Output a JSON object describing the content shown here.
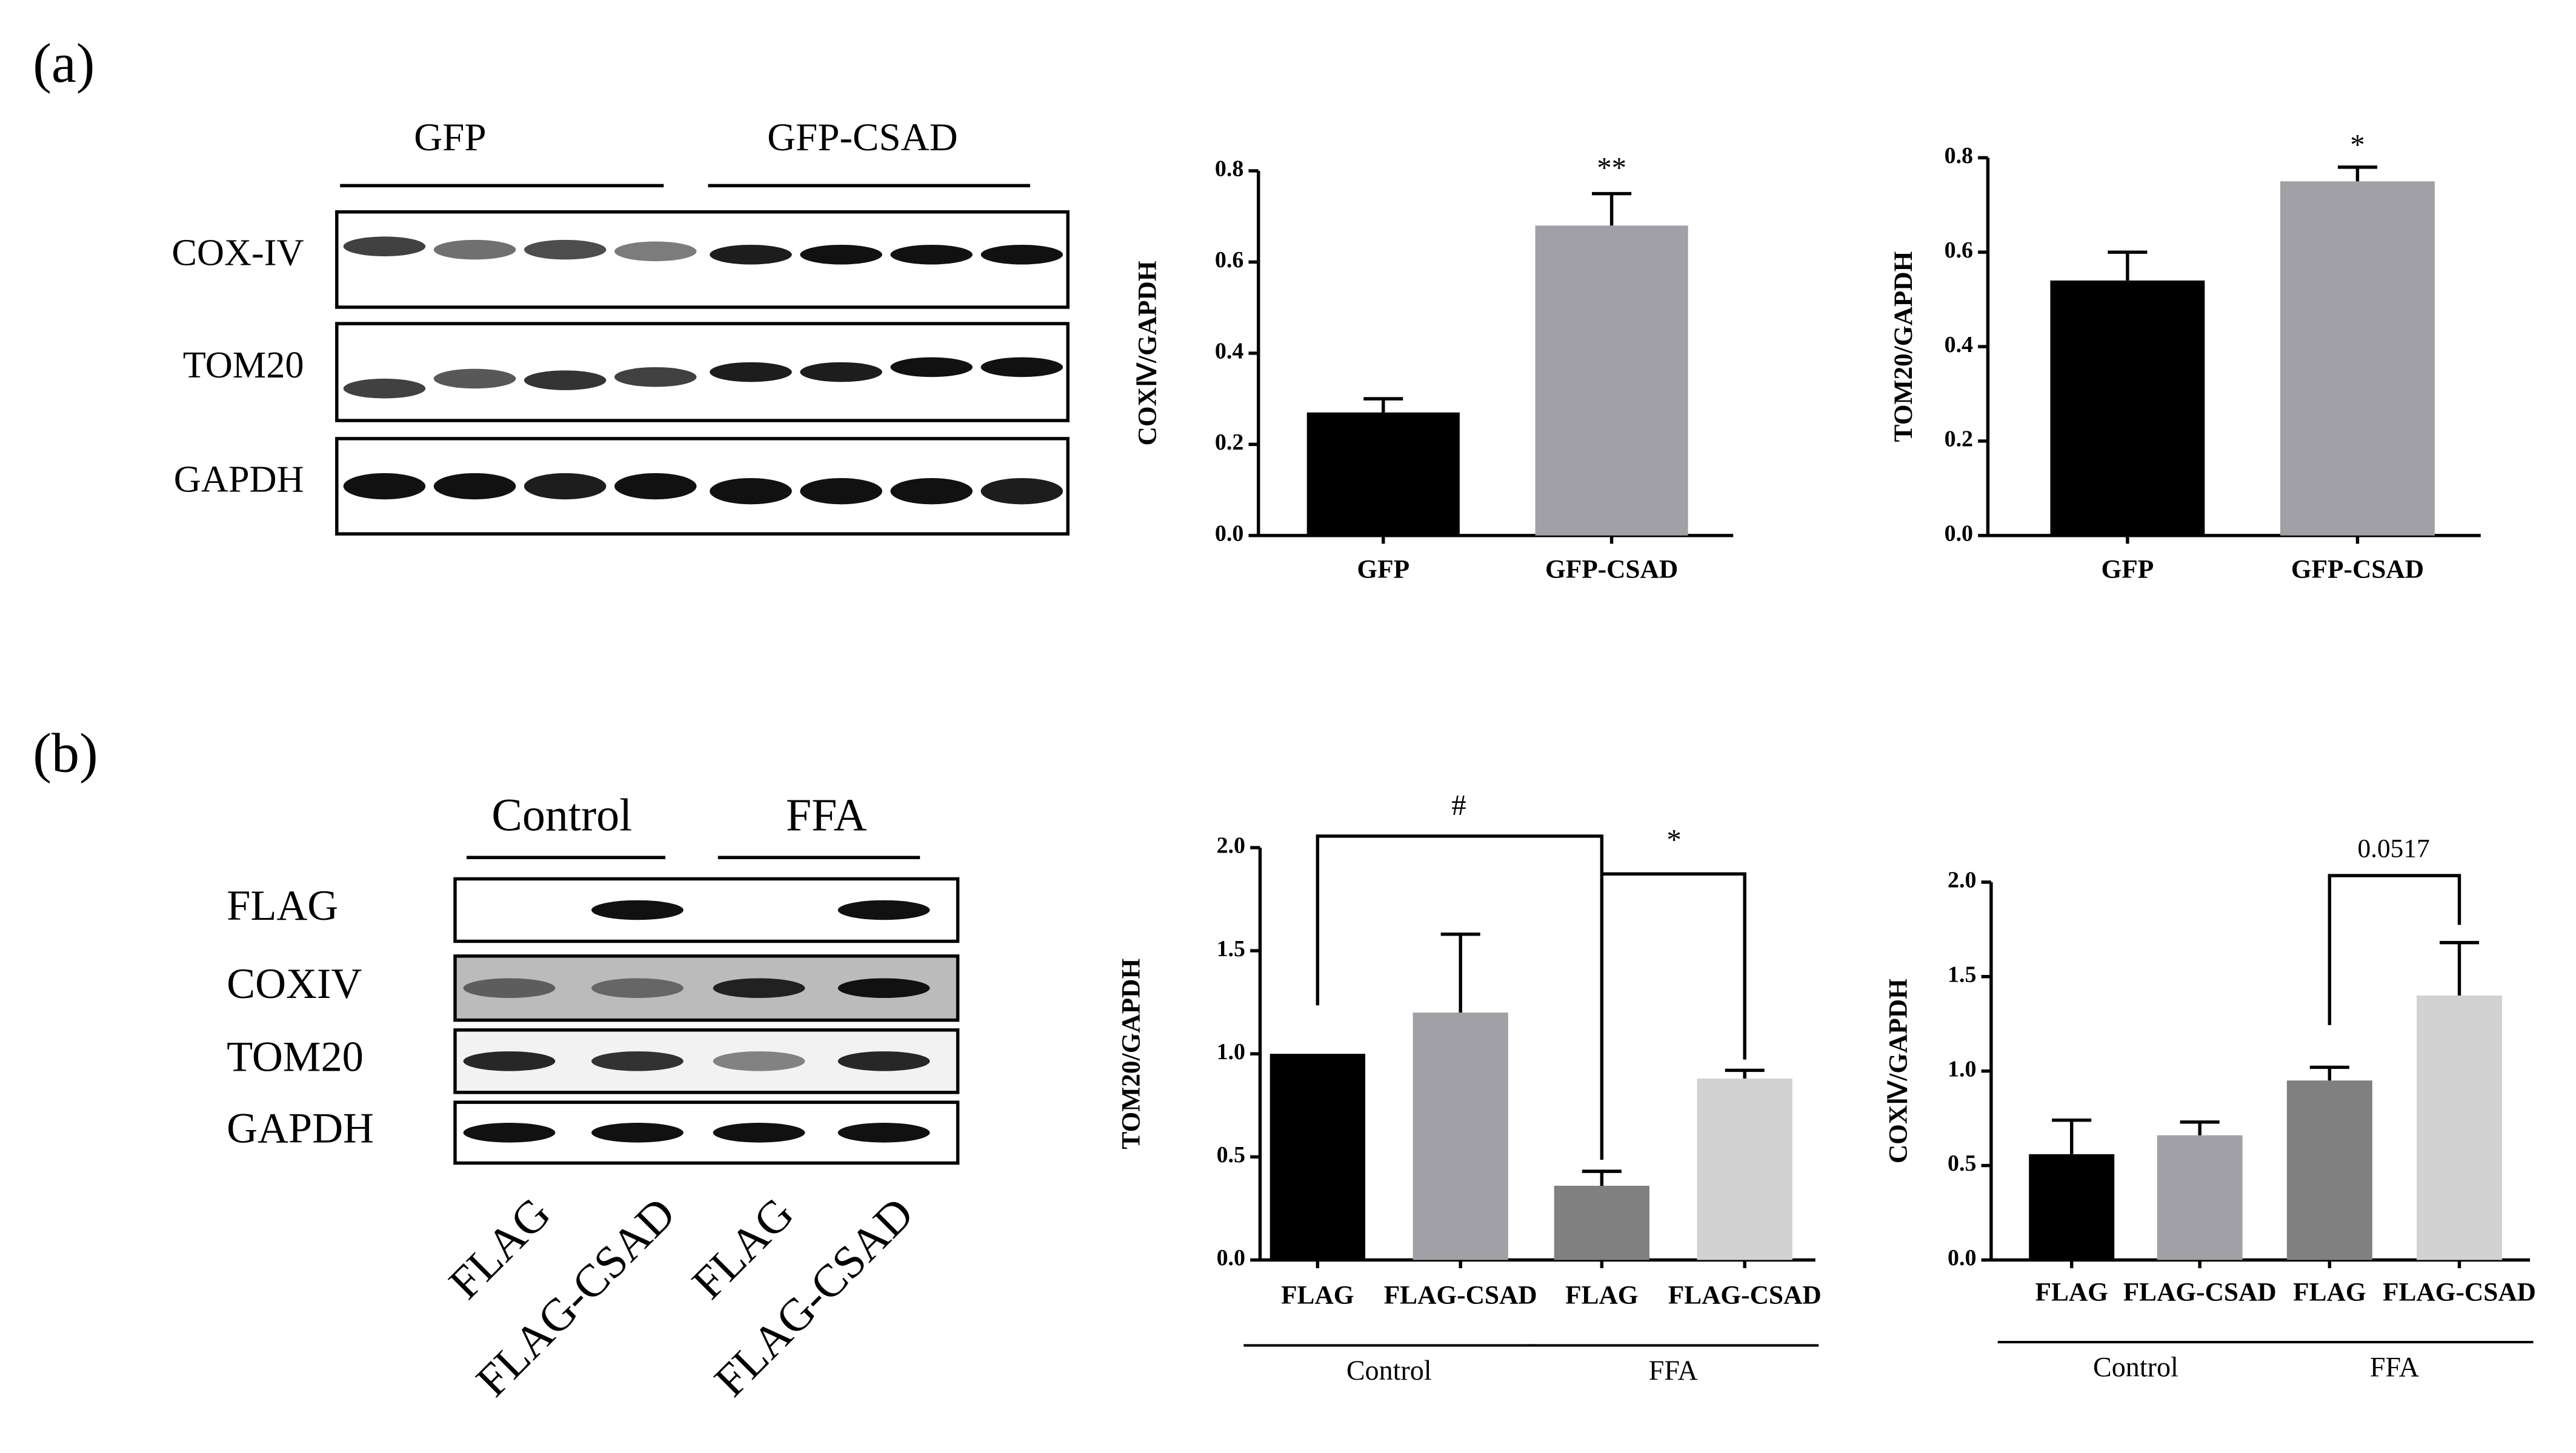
{
  "panels": [
    "(a)",
    "(b)"
  ],
  "blots": [
    {
      "groups": [
        "GFP",
        "GFP-CSAD"
      ],
      "rows": [
        "COX-IV",
        "TOM20",
        "GAPDH"
      ]
    },
    {
      "groups": [
        "Control",
        "FFA"
      ],
      "rows": [
        "FLAG",
        "COXIV",
        "TOM20",
        "GAPDH"
      ],
      "lanes": [
        "FLAG",
        "FLAG-CSAD",
        "FLAG",
        "FLAG-CSAD"
      ]
    }
  ],
  "chart_data": [
    {
      "type": "bar",
      "y_label": "COXⅣ/GAPDH",
      "categories": [
        "GFP",
        "GFP-CSAD"
      ],
      "values": [
        0.27,
        0.68
      ],
      "errors": [
        0.03,
        0.07
      ],
      "colors": [
        "#000000",
        "#a0a0a6"
      ],
      "ylim": [
        0,
        0.8
      ],
      "yticks": [
        {
          "value": 0,
          "label": "0.0"
        },
        0.2,
        0.4,
        0.6,
        0.8
      ],
      "annotations": [
        "**"
      ]
    },
    {
      "type": "bar",
      "y_label": "TOM20/GAPDH",
      "categories": [
        "GFP",
        "GFP-CSAD"
      ],
      "values": [
        0.54,
        0.75
      ],
      "errors": [
        0.06,
        0.03
      ],
      "colors": [
        "#000000",
        "#a0a0a6"
      ],
      "ylim": [
        0,
        0.8
      ],
      "yticks": [
        {
          "value": 0,
          "label": "0.0"
        },
        0.2,
        0.4,
        0.6,
        0.8
      ],
      "annotations": [
        "*"
      ]
    },
    {
      "type": "bar",
      "y_label": "TOM20/GAPDH",
      "categories": [
        "FLAG",
        "FLAG-CSAD",
        "FLAG",
        "FLAG-CSAD"
      ],
      "groups": [
        "Control",
        "FFA"
      ],
      "values": [
        1.0,
        1.2,
        0.36,
        0.88
      ],
      "errors": [
        0,
        0.38,
        0.07,
        0.04
      ],
      "colors": [
        "#000000",
        "#a0a0a6",
        "#808080",
        "#d2d2d2"
      ],
      "ylim": [
        0,
        2.0
      ],
      "yticks": [
        {
          "value": 0,
          "label": "0.0"
        },
        0.5,
        {
          "value": 1,
          "label": "1.0"
        },
        1.5,
        {
          "value": 2,
          "label": "2.0"
        }
      ],
      "annotations": [
        "#",
        "*"
      ]
    },
    {
      "type": "bar",
      "y_label": "COXⅣ/GAPDH",
      "categories": [
        "FLAG",
        "FLAG-CSAD",
        "FLAG",
        "FLAG-CSAD"
      ],
      "groups": [
        "Control",
        "FFA"
      ],
      "values": [
        0.56,
        0.66,
        0.95,
        1.4
      ],
      "errors": [
        0.18,
        0.07,
        0.07,
        0.28
      ],
      "colors": [
        "#000000",
        "#a0a0a6",
        "#808080",
        "#d2d2d2"
      ],
      "ylim": [
        0,
        2.0
      ],
      "yticks": [
        {
          "value": 0,
          "label": "0.0"
        },
        0.5,
        {
          "value": 1,
          "label": "1.0"
        },
        1.5,
        {
          "value": 2,
          "label": "2.0"
        }
      ],
      "annotations": [
        "0.0517"
      ]
    }
  ]
}
